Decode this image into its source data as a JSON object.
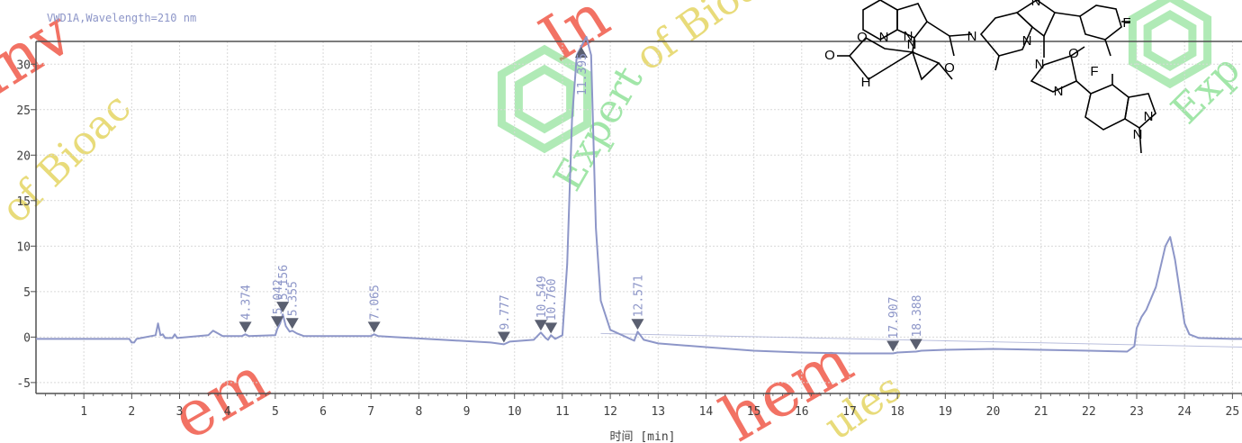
{
  "chart_data": {
    "type": "line",
    "title": "VWD1A,Wavelength=210 nm",
    "xlabel": "时间 [min]",
    "ylabel": "",
    "xlim": [
      0,
      25.2
    ],
    "ylim": [
      -6.2,
      32.5
    ],
    "xticks": [
      1,
      2,
      3,
      4,
      5,
      6,
      7,
      8,
      9,
      10,
      11,
      12,
      13,
      14,
      15,
      16,
      17,
      18,
      19,
      20,
      21,
      22,
      23,
      24,
      25
    ],
    "yticks": [
      -5,
      0,
      5,
      10,
      15,
      20,
      25,
      30
    ],
    "grid": true,
    "series": [
      {
        "x": [
          0,
          1,
          1.95,
          2.0,
          2.05,
          2.1,
          2.5,
          2.55,
          2.6,
          2.65,
          2.7,
          2.85,
          2.9,
          2.95,
          3.6,
          3.7,
          3.8,
          3.9,
          4.3,
          4.374,
          4.45,
          5.0,
          5.042,
          5.1,
          5.156,
          5.22,
          5.3,
          5.355,
          5.45,
          5.6,
          6.5,
          7.0,
          7.065,
          7.15,
          7.5,
          8.5,
          9.5,
          9.777,
          9.9,
          10.4,
          10.549,
          10.65,
          10.7,
          10.76,
          10.85,
          11.0,
          11.1,
          11.2,
          11.3,
          11.5,
          11.6,
          11.7,
          11.8,
          12.0,
          12.5,
          12.571,
          12.7,
          13,
          14,
          15,
          16,
          17,
          17.5,
          17.907,
          18.0,
          18.388,
          18.5,
          19,
          20,
          21,
          22,
          22.8,
          22.95,
          23.0,
          23.1,
          23.2,
          23.4,
          23.6,
          23.7,
          23.8,
          23.9,
          24.0,
          24.1,
          24.3,
          25,
          25.2
        ],
        "y": [
          -0.2,
          -0.2,
          -0.2,
          -0.6,
          -0.6,
          -0.2,
          0.2,
          1.5,
          0.2,
          0.3,
          -0.1,
          -0.1,
          0.3,
          -0.1,
          0.2,
          0.7,
          0.4,
          0.1,
          0.1,
          0.3,
          0.1,
          0.2,
          0.9,
          1.5,
          2.5,
          1.2,
          0.6,
          0.7,
          0.4,
          0.1,
          0.1,
          0.1,
          0.3,
          0.1,
          0.0,
          -0.3,
          -0.6,
          -0.8,
          -0.5,
          -0.3,
          0.5,
          -0.1,
          -0.3,
          0.2,
          -0.2,
          0.2,
          8.0,
          24.0,
          31.0,
          33.0,
          31.0,
          12.0,
          4.0,
          0.8,
          -0.4,
          0.6,
          -0.3,
          -0.7,
          -1.1,
          -1.5,
          -1.7,
          -1.8,
          -1.8,
          -1.8,
          -1.7,
          -1.6,
          -1.5,
          -1.4,
          -1.3,
          -1.4,
          -1.5,
          -1.6,
          -1.0,
          1.0,
          2.2,
          3.0,
          5.5,
          10.0,
          11.0,
          8.5,
          5.0,
          1.5,
          0.3,
          -0.1,
          -0.2,
          -0.2
        ]
      }
    ],
    "peak_labels": [
      {
        "x": 4.374,
        "label": "4.374"
      },
      {
        "x": 5.042,
        "label": "5.042"
      },
      {
        "x": 5.156,
        "label": "5.156"
      },
      {
        "x": 5.355,
        "label": "5.355"
      },
      {
        "x": 7.065,
        "label": "7.065"
      },
      {
        "x": 9.777,
        "label": "9.777"
      },
      {
        "x": 10.549,
        "label": "10.549"
      },
      {
        "x": 10.76,
        "label": "10.760"
      },
      {
        "x": 11.395,
        "label": "11.395"
      },
      {
        "x": 12.571,
        "label": "12.571"
      },
      {
        "x": 17.907,
        "label": "17.907"
      },
      {
        "x": 18.388,
        "label": "18.388"
      }
    ]
  },
  "watermarks": {
    "red": [
      "Inv",
      "In",
      "em",
      "hem"
    ],
    "yellow": [
      "of Bioac",
      "of Bioa",
      "ules"
    ],
    "green": [
      "Expert",
      "Exp"
    ]
  },
  "colors": {
    "trace": "#8d96c8",
    "axis": "#505050",
    "grid": "#d9d9d9",
    "watermark_red": "#f05a4a",
    "watermark_green": "#6fd97a"
  },
  "structure_atoms": [
    "O",
    "N",
    "O",
    "N",
    "H",
    "N",
    "N",
    "N",
    "O",
    "N",
    "F",
    "O",
    "N",
    "N",
    "F",
    "N",
    "N"
  ]
}
